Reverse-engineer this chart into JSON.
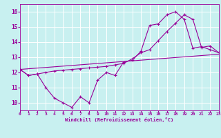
{
  "bg_color": "#c8f0f0",
  "grid_color": "#ffffff",
  "line_color": "#990099",
  "xlim": [
    0,
    23
  ],
  "ylim": [
    9.5,
    16.5
  ],
  "xticks": [
    0,
    1,
    2,
    3,
    4,
    5,
    6,
    7,
    8,
    9,
    10,
    11,
    12,
    13,
    14,
    15,
    16,
    17,
    18,
    19,
    20,
    21,
    22,
    23
  ],
  "yticks": [
    10,
    11,
    12,
    13,
    14,
    15,
    16
  ],
  "xlabel": "Windchill (Refroidissement éolien,°C)",
  "line1_x": [
    0,
    1,
    2,
    3,
    4,
    5,
    6,
    7,
    8,
    9,
    10,
    11,
    12,
    13,
    14,
    15,
    16,
    17,
    18,
    19,
    20,
    21,
    22,
    23
  ],
  "line1_y": [
    12.2,
    11.8,
    11.9,
    11.0,
    10.3,
    10.0,
    9.7,
    10.4,
    10.0,
    11.5,
    12.0,
    11.8,
    12.7,
    12.8,
    13.4,
    15.1,
    15.2,
    15.8,
    16.0,
    15.5,
    13.6,
    13.7,
    13.5,
    13.3
  ],
  "line2_x": [
    0,
    1,
    2,
    3,
    4,
    5,
    6,
    7,
    8,
    9,
    10,
    11,
    12,
    13,
    14,
    15,
    16,
    17,
    18,
    19,
    20,
    21,
    22,
    23
  ],
  "line2_y": [
    12.2,
    11.8,
    11.9,
    12.0,
    12.1,
    12.15,
    12.2,
    12.25,
    12.3,
    12.35,
    12.4,
    12.5,
    12.6,
    12.9,
    13.3,
    13.5,
    14.1,
    14.7,
    15.25,
    15.8,
    15.5,
    13.65,
    13.75,
    13.3
  ],
  "line3_x": [
    0,
    23
  ],
  "line3_y": [
    12.2,
    13.2
  ]
}
